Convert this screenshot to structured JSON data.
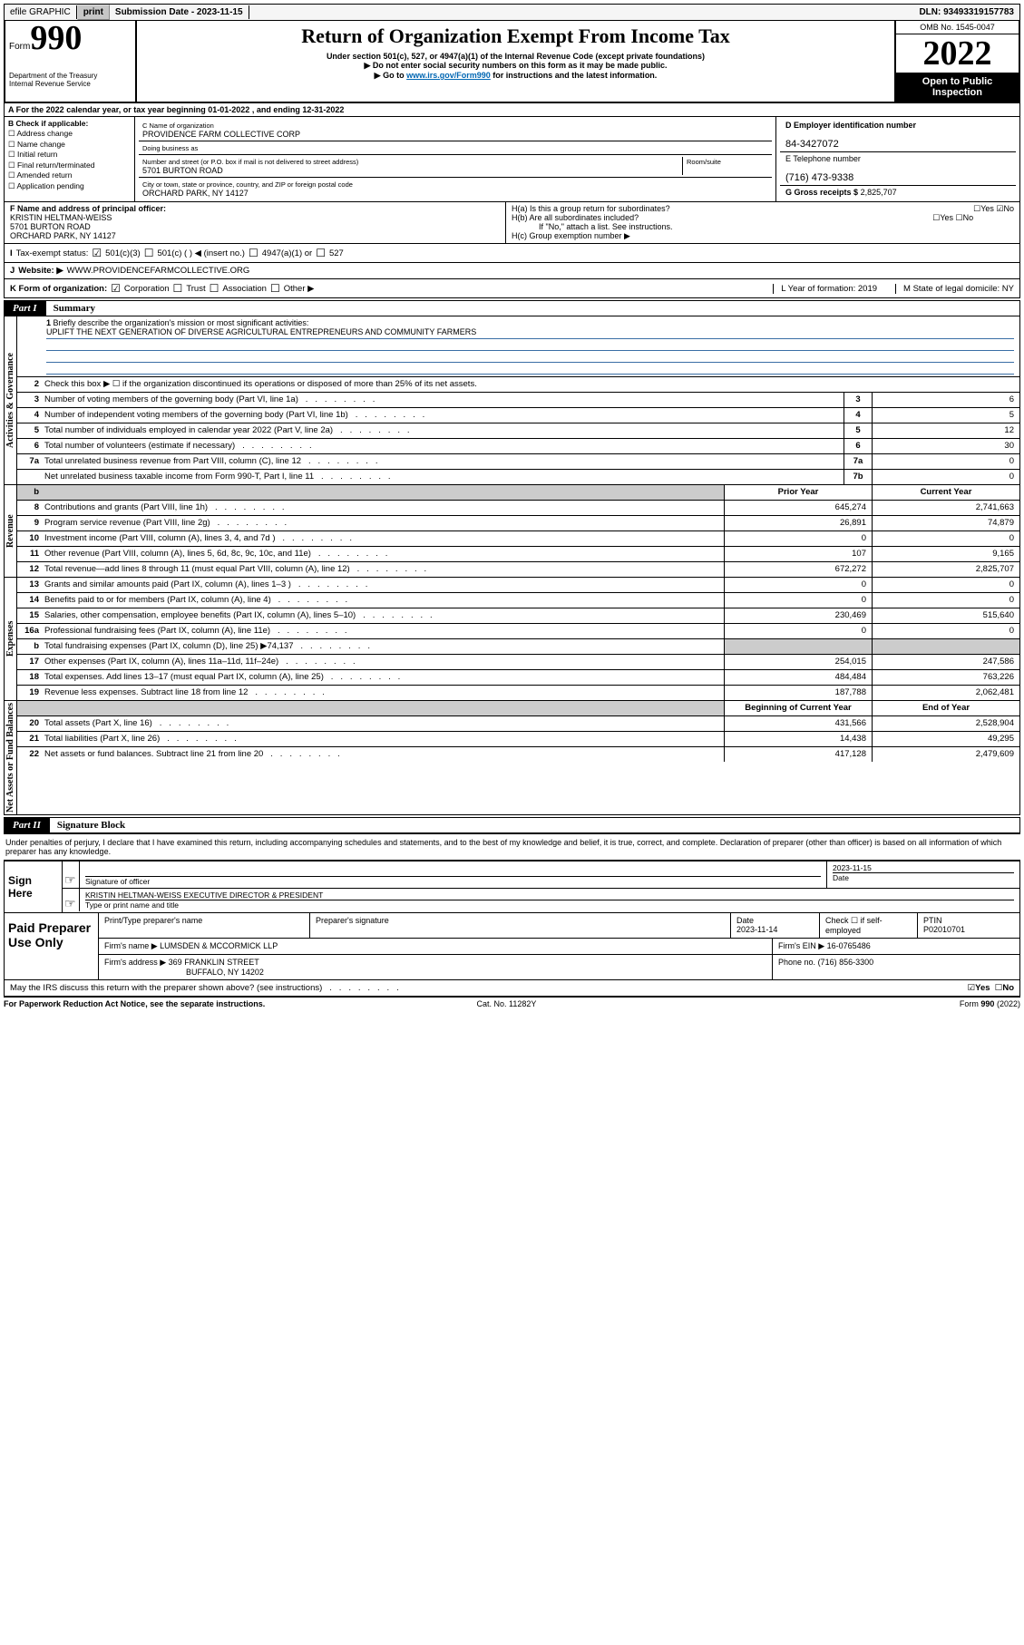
{
  "topbar": {
    "efile": "efile GRAPHIC",
    "print": "print",
    "sub_label": "Submission Date - ",
    "sub_date": "2023-11-15",
    "dln_label": "DLN: ",
    "dln": "93493319157783"
  },
  "head": {
    "form_word": "Form",
    "form_no": "990",
    "dept1": "Department of the Treasury",
    "dept2": "Internal Revenue Service",
    "title": "Return of Organization Exempt From Income Tax",
    "sub1": "Under section 501(c), 527, or 4947(a)(1) of the Internal Revenue Code (except private foundations)",
    "sub2": "Do not enter social security numbers on this form as it may be made public.",
    "sub3_pre": "Go to ",
    "sub3_link": "www.irs.gov/Form990",
    "sub3_post": " for instructions and the latest information.",
    "omb": "OMB No. 1545-0047",
    "year": "2022",
    "open1": "Open to Public",
    "open2": "Inspection"
  },
  "A": {
    "text_pre": "For the 2022 calendar year, or tax year beginning ",
    "begin": "01-01-2022",
    "mid": " , and ending ",
    "end": "12-31-2022"
  },
  "B": {
    "label": "B Check if applicable:",
    "items": [
      "Address change",
      "Name change",
      "Initial return",
      "Final return/terminated",
      "Amended return",
      "Application pending"
    ]
  },
  "C": {
    "name_label": "C Name of organization",
    "name": "PROVIDENCE FARM COLLECTIVE CORP",
    "dba_label": "Doing business as",
    "street_label": "Number and street (or P.O. box if mail is not delivered to street address)",
    "room_label": "Room/suite",
    "street": "5701 BURTON ROAD",
    "city_label": "City or town, state or province, country, and ZIP or foreign postal code",
    "city": "ORCHARD PARK, NY  14127"
  },
  "D": {
    "label": "D Employer identification number",
    "value": "84-3427072"
  },
  "E": {
    "label": "E Telephone number",
    "value": "(716) 473-9338"
  },
  "G": {
    "label": "G Gross receipts $",
    "value": "2,825,707"
  },
  "F": {
    "label": "F Name and address of principal officer:",
    "name": "KRISTIN HELTMAN-WEISS",
    "street": "5701 BURTON ROAD",
    "city": "ORCHARD PARK, NY  14127"
  },
  "H": {
    "a": "H(a)  Is this a group return for subordinates?",
    "a_yes": "Yes",
    "a_no": "No",
    "b": "H(b)  Are all subordinates included?",
    "b_yes": "Yes",
    "b_no": "No",
    "b_note": "If \"No,\" attach a list. See instructions.",
    "c": "H(c)  Group exemption number ▶"
  },
  "I": {
    "label": "Tax-exempt status:",
    "opts": [
      "501(c)(3)",
      "501(c) (  ) ◀ (insert no.)",
      "4947(a)(1) or",
      "527"
    ]
  },
  "J": {
    "label": "Website: ▶",
    "value": "WWW.PROVIDENCEFARMCOLLECTIVE.ORG"
  },
  "K": {
    "label": "K Form of organization:",
    "opts": [
      "Corporation",
      "Trust",
      "Association",
      "Other ▶"
    ],
    "L": "L Year of formation: 2019",
    "M": "M State of legal domicile: NY"
  },
  "partI": {
    "num": "Part I",
    "title": "Summary"
  },
  "sec_gov": "Activities & Governance",
  "sec_rev": "Revenue",
  "sec_exp": "Expenses",
  "sec_net": "Net Assets or Fund Balances",
  "l1": {
    "txt": "Briefly describe the organization's mission or most significant activities:",
    "mission": "UPLIFT THE NEXT GENERATION OF DIVERSE AGRICULTURAL ENTREPRENEURS AND COMMUNITY FARMERS"
  },
  "l2": "Check this box ▶ ☐  if the organization discontinued its operations or disposed of more than 25% of its net assets.",
  "gov": [
    {
      "n": "3",
      "t": "Number of voting members of the governing body (Part VI, line 1a)",
      "k": "3",
      "v": "6"
    },
    {
      "n": "4",
      "t": "Number of independent voting members of the governing body (Part VI, line 1b)",
      "k": "4",
      "v": "5"
    },
    {
      "n": "5",
      "t": "Total number of individuals employed in calendar year 2022 (Part V, line 2a)",
      "k": "5",
      "v": "12"
    },
    {
      "n": "6",
      "t": "Total number of volunteers (estimate if necessary)",
      "k": "6",
      "v": "30"
    },
    {
      "n": "7a",
      "t": "Total unrelated business revenue from Part VIII, column (C), line 12",
      "k": "7a",
      "v": "0"
    },
    {
      "n": "",
      "t": "Net unrelated business taxable income from Form 990-T, Part I, line 11",
      "k": "7b",
      "v": "0"
    }
  ],
  "hdr_prior": "Prior Year",
  "hdr_curr": "Current Year",
  "rev": [
    {
      "n": "8",
      "t": "Contributions and grants (Part VIII, line 1h)",
      "p": "645,274",
      "c": "2,741,663"
    },
    {
      "n": "9",
      "t": "Program service revenue (Part VIII, line 2g)",
      "p": "26,891",
      "c": "74,879"
    },
    {
      "n": "10",
      "t": "Investment income (Part VIII, column (A), lines 3, 4, and 7d )",
      "p": "0",
      "c": "0"
    },
    {
      "n": "11",
      "t": "Other revenue (Part VIII, column (A), lines 5, 6d, 8c, 9c, 10c, and 11e)",
      "p": "107",
      "c": "9,165"
    },
    {
      "n": "12",
      "t": "Total revenue—add lines 8 through 11 (must equal Part VIII, column (A), line 12)",
      "p": "672,272",
      "c": "2,825,707"
    }
  ],
  "exp": [
    {
      "n": "13",
      "t": "Grants and similar amounts paid (Part IX, column (A), lines 1–3 )",
      "p": "0",
      "c": "0"
    },
    {
      "n": "14",
      "t": "Benefits paid to or for members (Part IX, column (A), line 4)",
      "p": "0",
      "c": "0"
    },
    {
      "n": "15",
      "t": "Salaries, other compensation, employee benefits (Part IX, column (A), lines 5–10)",
      "p": "230,469",
      "c": "515,640"
    },
    {
      "n": "16a",
      "t": "Professional fundraising fees (Part IX, column (A), line 11e)",
      "p": "0",
      "c": "0"
    },
    {
      "n": "b",
      "t": "Total fundraising expenses (Part IX, column (D), line 25) ▶74,137",
      "p": "",
      "c": "",
      "shade": true
    },
    {
      "n": "17",
      "t": "Other expenses (Part IX, column (A), lines 11a–11d, 11f–24e)",
      "p": "254,015",
      "c": "247,586"
    },
    {
      "n": "18",
      "t": "Total expenses. Add lines 13–17 (must equal Part IX, column (A), line 25)",
      "p": "484,484",
      "c": "763,226"
    },
    {
      "n": "19",
      "t": "Revenue less expenses. Subtract line 18 from line 12",
      "p": "187,788",
      "c": "2,062,481"
    }
  ],
  "hdr_boy": "Beginning of Current Year",
  "hdr_eoy": "End of Year",
  "net": [
    {
      "n": "20",
      "t": "Total assets (Part X, line 16)",
      "p": "431,566",
      "c": "2,528,904"
    },
    {
      "n": "21",
      "t": "Total liabilities (Part X, line 26)",
      "p": "14,438",
      "c": "49,295"
    },
    {
      "n": "22",
      "t": "Net assets or fund balances. Subtract line 21 from line 20",
      "p": "417,128",
      "c": "2,479,609"
    }
  ],
  "partII": {
    "num": "Part II",
    "title": "Signature Block"
  },
  "sig_intro": "Under penalties of perjury, I declare that I have examined this return, including accompanying schedules and statements, and to the best of my knowledge and belief, it is true, correct, and complete. Declaration of preparer (other than officer) is based on all information of which preparer has any knowledge.",
  "sign": {
    "here": "Sign Here",
    "sig_label": "Signature of officer",
    "date_label": "Date",
    "date": "2023-11-15",
    "name": "KRISTIN HELTMAN-WEISS  EXECUTIVE DIRECTOR & PRESIDENT",
    "name_label": "Type or print name and title"
  },
  "paid": {
    "label": "Paid Preparer Use Only",
    "h1": "Print/Type preparer's name",
    "h2": "Preparer's signature",
    "h3": "Date",
    "h3v": "2023-11-14",
    "h4": "Check ☐ if self-employed",
    "h5": "PTIN",
    "h5v": "P02010701",
    "firm_name_l": "Firm's name    ▶",
    "firm_name": "LUMSDEN & MCCORMICK LLP",
    "firm_ein_l": "Firm's EIN ▶",
    "firm_ein": "16-0765486",
    "firm_addr_l": "Firm's address ▶",
    "firm_addr1": "369 FRANKLIN STREET",
    "firm_addr2": "BUFFALO, NY  14202",
    "phone_l": "Phone no.",
    "phone": "(716) 856-3300"
  },
  "may": {
    "q": "May the IRS discuss this return with the preparer shown above? (see instructions)",
    "yes": "Yes",
    "no": "No"
  },
  "foot": {
    "l": "For Paperwork Reduction Act Notice, see the separate instructions.",
    "m": "Cat. No. 11282Y",
    "r": "Form 990 (2022)"
  }
}
